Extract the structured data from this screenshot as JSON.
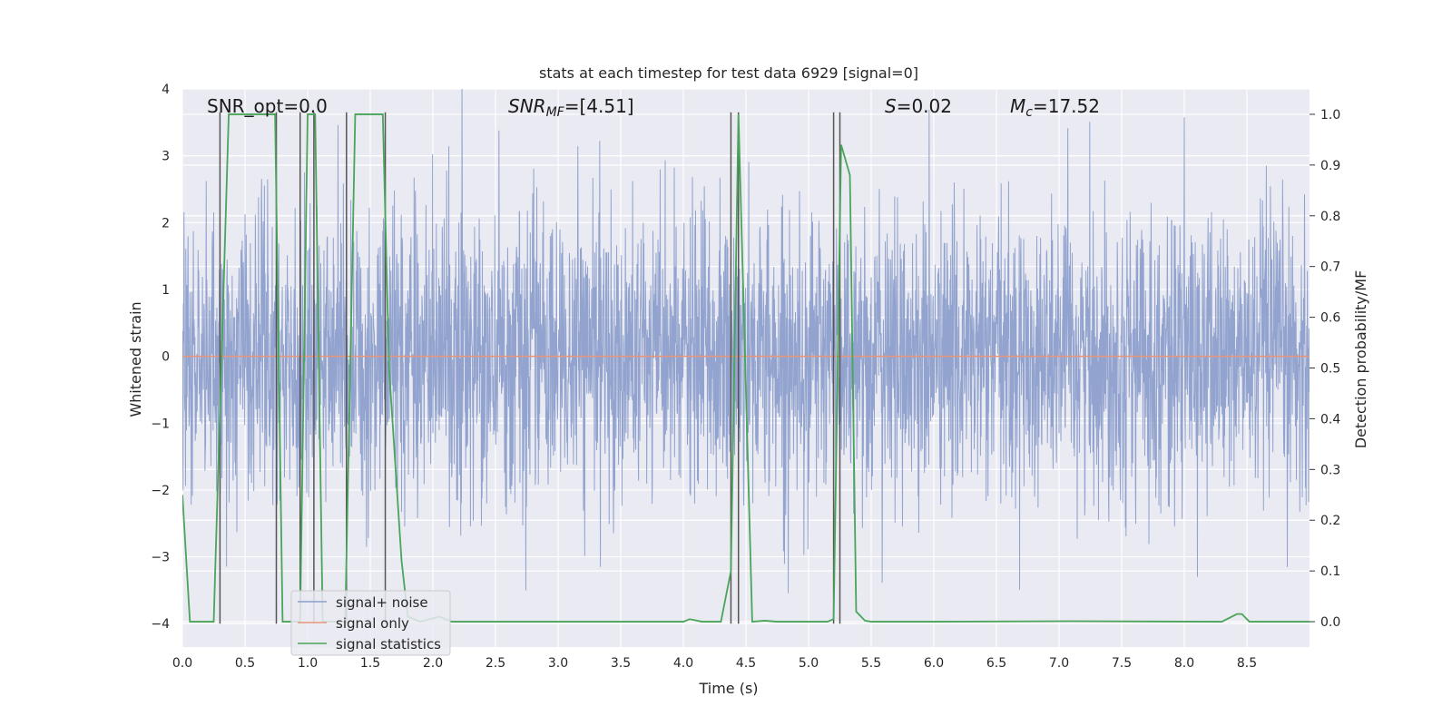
{
  "chart_data": {
    "type": "line",
    "title": "stats at each timestep for test data 6929 [signal=0]",
    "xlabel": "Time (s)",
    "ylabel": "Whitened strain",
    "y2label": "Detection probability/MF",
    "xlim": [
      0,
      9.0
    ],
    "ylim": [
      -4.35,
      4.0
    ],
    "y2lim": [
      -0.05,
      1.05
    ],
    "x_ticks": [
      "0.0",
      "0.5",
      "1.0",
      "1.5",
      "2.0",
      "2.5",
      "3.0",
      "3.5",
      "4.0",
      "4.5",
      "5.0",
      "5.5",
      "6.0",
      "6.5",
      "7.0",
      "7.5",
      "8.0",
      "8.5"
    ],
    "y_ticks": [
      "4",
      "3",
      "2",
      "1",
      "0",
      "−1",
      "−2",
      "−3",
      "−4"
    ],
    "y2_ticks": [
      "1.0",
      "0.9",
      "0.8",
      "0.7",
      "0.6",
      "0.5",
      "0.4",
      "0.3",
      "0.2",
      "0.1",
      "0.0"
    ],
    "grid": true,
    "legend": "bottom-left",
    "colors": {
      "noise": "#8c9fcb",
      "signal": "#e8957a",
      "stats": "#4aa45a",
      "vlines": "#555555",
      "background": "#eaeaf2",
      "grid": "#ffffff"
    },
    "series": [
      {
        "name": "signal+ noise",
        "axis": "left",
        "noise_envelope": {
          "x_start": 0,
          "x_end": 9.0,
          "typical_abs": 1.6,
          "peak_abs": 4.0
        }
      },
      {
        "name": "signal only",
        "axis": "left",
        "x": [
          0,
          9.0
        ],
        "y": [
          0,
          0
        ]
      },
      {
        "name": "signal statistics",
        "axis": "right",
        "x": [
          0.0,
          0.06,
          0.25,
          0.37,
          0.74,
          0.8,
          0.94,
          1.0,
          1.06,
          1.12,
          1.3,
          1.38,
          1.6,
          1.65,
          1.75,
          1.8,
          1.9,
          2.05,
          2.15,
          2.3,
          4.0,
          4.05,
          4.15,
          4.3,
          4.38,
          4.44,
          4.55,
          4.65,
          4.75,
          4.9,
          5.15,
          5.2,
          5.26,
          5.33,
          5.38,
          5.45,
          5.5,
          6.0,
          7.1,
          8.3,
          8.42,
          8.46,
          8.52,
          9.0
        ],
        "y": [
          0.25,
          0.0,
          0.0,
          1.0,
          1.0,
          0.0,
          0.0,
          1.0,
          1.0,
          0.0,
          0.0,
          1.0,
          1.0,
          0.5,
          0.12,
          0.01,
          0.0,
          0.01,
          0.0,
          0.0,
          0.0,
          0.005,
          0.0,
          0.0,
          0.1,
          1.0,
          0.0,
          0.002,
          0.0,
          0.0,
          0.0,
          0.005,
          0.94,
          0.88,
          0.02,
          0.002,
          0.0,
          0.0,
          0.001,
          0.0,
          0.015,
          0.015,
          0.0,
          0.0
        ]
      }
    ],
    "vlines": {
      "x": [
        0.3,
        0.75,
        0.94,
        1.05,
        1.31,
        1.62,
        4.38,
        4.44,
        5.2,
        5.25
      ],
      "ymin": -4.0,
      "ymax": 3.65
    },
    "annotations": [
      {
        "key": "snr_opt",
        "text": "SNR_opt=0.0"
      },
      {
        "key": "snr_mf",
        "text_main": "SNR",
        "text_sub": "MF",
        "text_rest": "=[4.51]"
      },
      {
        "key": "s",
        "text_main": "S",
        "text_rest": "=0.02"
      },
      {
        "key": "mc",
        "text_main": "M",
        "text_sub": "c",
        "text_rest": "=17.52"
      }
    ]
  }
}
